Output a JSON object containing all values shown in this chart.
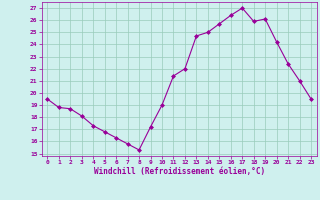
{
  "x": [
    0,
    1,
    2,
    3,
    4,
    5,
    6,
    7,
    8,
    9,
    10,
    11,
    12,
    13,
    14,
    15,
    16,
    17,
    18,
    19,
    20,
    21,
    22,
    23
  ],
  "y": [
    19.5,
    18.8,
    18.7,
    18.1,
    17.3,
    16.8,
    16.3,
    15.8,
    15.3,
    17.2,
    19.0,
    21.4,
    22.0,
    24.7,
    25.0,
    25.7,
    26.4,
    27.0,
    25.9,
    26.1,
    24.2,
    22.4,
    21.0,
    19.5
  ],
  "xlim": [
    -0.5,
    23.5
  ],
  "ylim": [
    14.8,
    27.5
  ],
  "yticks": [
    15,
    16,
    17,
    18,
    19,
    20,
    21,
    22,
    23,
    24,
    25,
    26,
    27
  ],
  "xticks": [
    0,
    1,
    2,
    3,
    4,
    5,
    6,
    7,
    8,
    9,
    10,
    11,
    12,
    13,
    14,
    15,
    16,
    17,
    18,
    19,
    20,
    21,
    22,
    23
  ],
  "line_color": "#990099",
  "marker": "D",
  "marker_size": 2.0,
  "bg_color": "#cff0ee",
  "grid_color": "#99ccbb",
  "xlabel": "Windchill (Refroidissement éolien,°C)",
  "xlabel_color": "#990099",
  "tick_color": "#990099",
  "figsize": [
    3.2,
    2.0
  ],
  "dpi": 100
}
